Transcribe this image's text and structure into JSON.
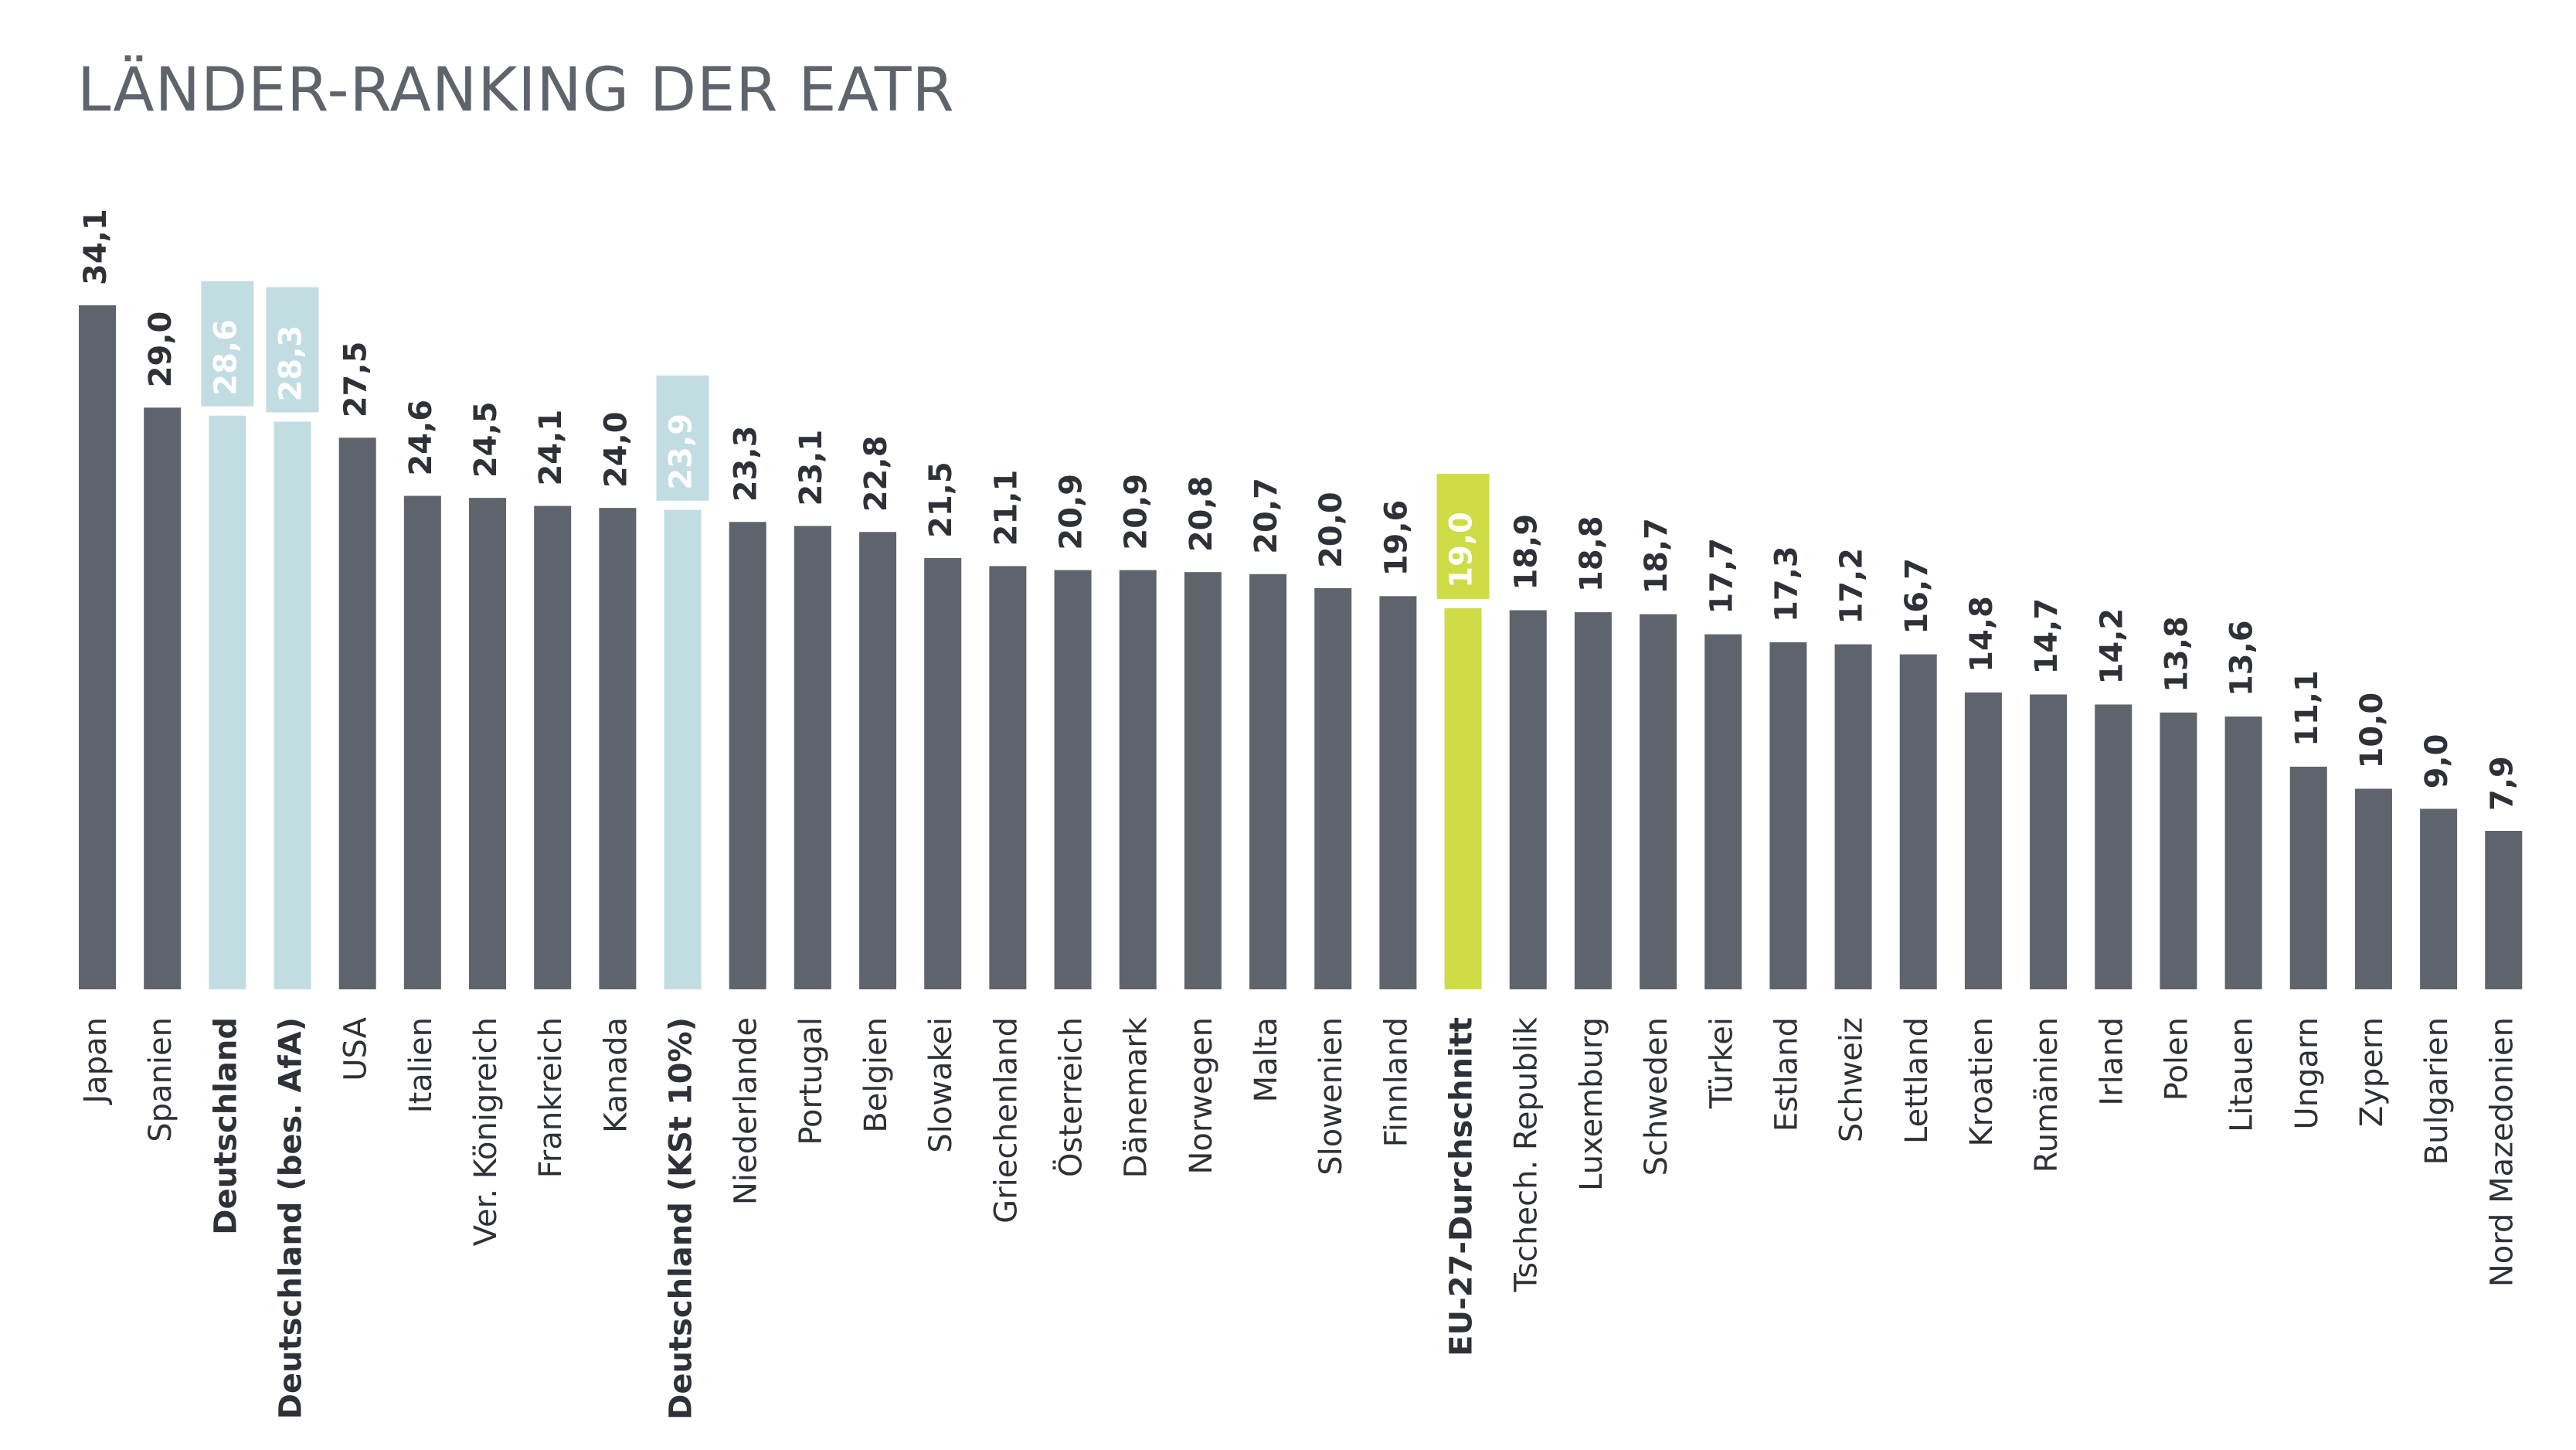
{
  "title": "LÄNDER-RANKING DER EATR",
  "colors": {
    "default": "#5f646c",
    "highlight_de": "#c2dde1",
    "highlight_eu": "#cedd45",
    "label_text": "#2e3238",
    "highlight_label_text": "#ffffff"
  },
  "chart_data": {
    "type": "bar",
    "title": "LÄNDER-RANKING DER EATR",
    "xlabel": "",
    "ylabel": "",
    "ylim": [
      0,
      34.1
    ],
    "grid": false,
    "categories": [
      "Japan",
      "Spanien",
      "Deutschland",
      "Deutschland (bes. AfA)",
      "USA",
      "Italien",
      "Ver. Königreich",
      "Frankreich",
      "Kanada",
      "Deutschland (KSt 10%)",
      "Niederlande",
      "Portugal",
      "Belgien",
      "Slowakei",
      "Griechenland",
      "Österreich",
      "Dänemark",
      "Norwegen",
      "Malta",
      "Slowenien",
      "Finnland",
      "EU-27-Durchschnitt",
      "Tschech. Republik",
      "Luxemburg",
      "Schweden",
      "Türkei",
      "Estland",
      "Schweiz",
      "Lettland",
      "Kroatien",
      "Rumänien",
      "Irland",
      "Polen",
      "Litauen",
      "Ungarn",
      "Zypern",
      "Bulgarien",
      "Nord Mazedonien"
    ],
    "values": [
      34.1,
      29.0,
      28.6,
      28.3,
      27.5,
      24.6,
      24.5,
      24.1,
      24.0,
      23.9,
      23.3,
      23.1,
      22.8,
      21.5,
      21.1,
      20.9,
      20.9,
      20.8,
      20.7,
      20.0,
      19.6,
      19.0,
      18.9,
      18.8,
      18.7,
      17.7,
      17.3,
      17.2,
      16.7,
      14.8,
      14.7,
      14.2,
      13.8,
      13.6,
      11.1,
      10.0,
      9.0,
      7.9
    ],
    "value_labels": [
      "34,1",
      "29,0",
      "28,6",
      "28,3",
      "27,5",
      "24,6",
      "24,5",
      "24,1",
      "24,0",
      "23,9",
      "23,3",
      "23,1",
      "22,8",
      "21,5",
      "21,1",
      "20,9",
      "20,9",
      "20,8",
      "20,7",
      "20,0",
      "19,6",
      "19,0",
      "18,9",
      "18,8",
      "18,7",
      "17,7",
      "17,3",
      "17,2",
      "16,7",
      "14,8",
      "14,7",
      "14,2",
      "13,8",
      "13,6",
      "11,1",
      "10,0",
      "9,0",
      "7,9"
    ],
    "highlight_de": [
      2,
      3,
      9
    ],
    "highlight_eu": [
      21
    ],
    "bold_categories": [
      2,
      3,
      9,
      21
    ]
  }
}
